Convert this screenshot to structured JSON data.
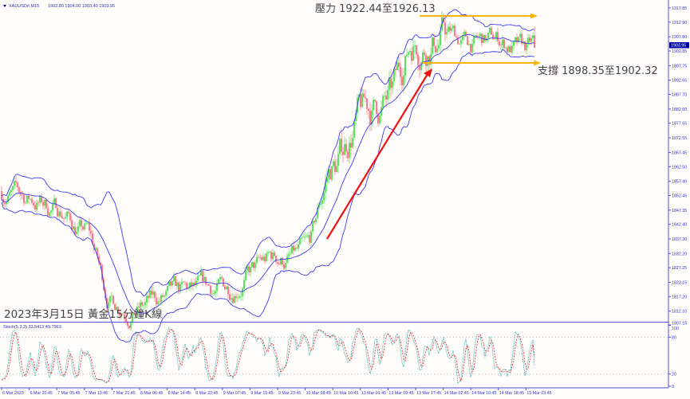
{
  "header": {
    "symbol": "XAUUSD#,M15",
    "ohlc": "1903.80 1904.00 1903.40 1903.95"
  },
  "annotations": {
    "resistance": "壓力 1922.44至1926.13",
    "support": "支撐 1898.35至1902.32",
    "caption": "2023年3月15日 黃金15分鐘K線"
  },
  "colors": {
    "up_candle": "#33dd33",
    "down_candle": "#ff5a6e",
    "bands": "#3c3cf0",
    "trend_arrow": "#ee1111",
    "channel_arrows": "#ffb400",
    "axis": "#5050dd"
  },
  "chart_data": [
    {
      "type": "candlestick",
      "title": "XAUUSD#,M15",
      "overlays": [
        "Bollinger Bands",
        "moving average"
      ],
      "ylim": [
        1807.15,
        1917.85
      ],
      "y_ticks": [
        "1917.85",
        "1912.90",
        "1907.80",
        "1902.85",
        "1897.75",
        "1892.65",
        "1887.70",
        "1882.60",
        "1877.65",
        "1872.55",
        "1867.45",
        "1862.50",
        "1857.40",
        "1852.45",
        "1847.35",
        "1842.40",
        "1837.30",
        "1832.20",
        "1827.25",
        "1822.15",
        "1817.20",
        "1812.10",
        "1807.15"
      ],
      "current_price": "1903.95",
      "x_ticks": [
        "6 Mar 2023",
        "6 Mar 20:45",
        "7 Mar 05:45",
        "7 Mar 13:45",
        "7 Mar 21:45",
        "8 Mar 06:45",
        "8 Mar 14:45",
        "8 Mar 22:45",
        "9 Mar 07:45",
        "9 Mar 15:45",
        "9 Mar 23:45",
        "10 Mar 08:45",
        "10 Mar 16:45",
        "13 Mar 01:45",
        "13 Mar 09:45",
        "13 Mar 17:45",
        "14 Mar 02:45",
        "14 Mar 10:45",
        "14 Mar 18:45",
        "15 Mar 03:45"
      ],
      "approx_close_at_ticks": [
        1854,
        1851,
        1848,
        1840,
        1816,
        1814,
        1816,
        1817,
        1819,
        1826,
        1830,
        1831,
        1862,
        1880,
        1884,
        1908,
        1910,
        1905,
        1906,
        1902
      ],
      "last_close": 1903.95,
      "levels": {
        "resistance": [
          1922.44,
          1926.13
        ],
        "support": [
          1898.35,
          1902.32
        ]
      }
    },
    {
      "type": "line",
      "title": "Stoch(5,3,3) 33.5413 49.7963",
      "label": "Stoch(5,3,3) 33.5413 49.7963",
      "ylim": [
        0,
        100
      ],
      "y_ticks": [
        "100",
        "80",
        "20",
        "0"
      ],
      "last_values": [
        33.5413,
        49.7963
      ]
    }
  ]
}
